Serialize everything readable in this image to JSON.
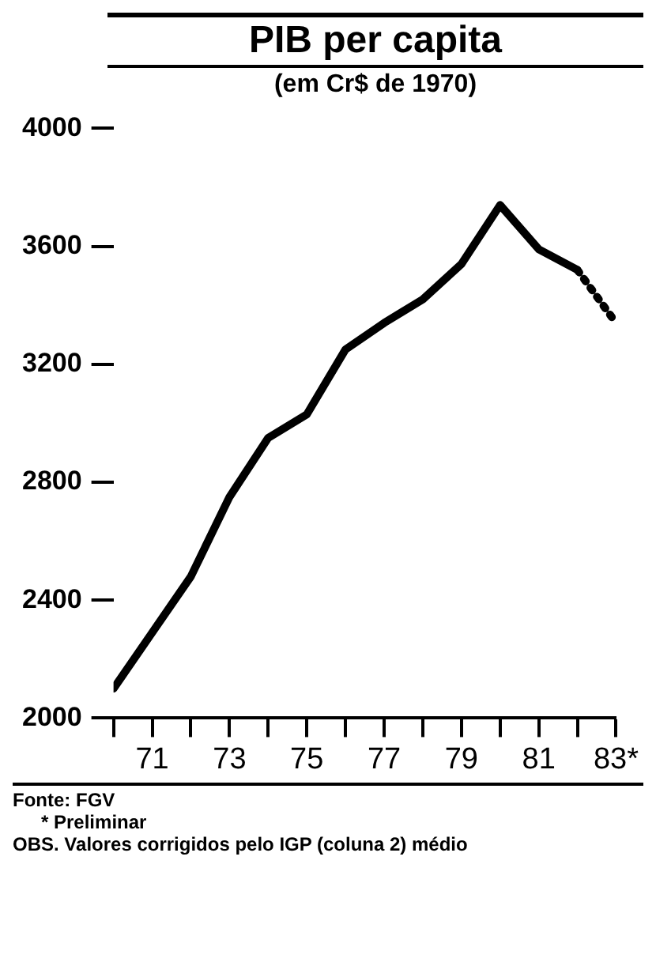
{
  "chart_data": {
    "type": "line",
    "title": "PIB per capita",
    "subtitle": "(em Cr$ de 1970)",
    "series": [
      {
        "color": "#000000",
        "line_style": "solid",
        "x": [
          70,
          71,
          72,
          73,
          74,
          75,
          76,
          77,
          78,
          79,
          80,
          81,
          82
        ],
        "values": [
          2100,
          2290,
          2480,
          2750,
          2950,
          3030,
          3250,
          3340,
          3420,
          3540,
          3740,
          3590,
          3520
        ]
      },
      {
        "color": "#000000",
        "line_style": "dotted",
        "x": [
          82,
          83
        ],
        "values": [
          3520,
          3340
        ]
      }
    ],
    "xlim": [
      70,
      83
    ],
    "xticks": [
      {
        "value": 70,
        "label": null
      },
      71,
      {
        "value": 72,
        "label": null
      },
      73,
      {
        "value": 74,
        "label": null
      },
      75,
      {
        "value": 76,
        "label": null
      },
      77,
      {
        "value": 78,
        "label": null
      },
      79,
      {
        "value": 80,
        "label": null
      },
      81,
      {
        "value": 82,
        "label": null
      },
      {
        "value": 83,
        "label": "83*"
      }
    ],
    "ylim": [
      2000,
      4000
    ],
    "yticks": [
      2000,
      2400,
      2800,
      3200,
      3600,
      4000
    ],
    "marker": "none",
    "grid": false,
    "legend": false,
    "annotations": [
      "Fonte: FGV",
      "* Preliminar",
      "OBS. Valores corrigidos pelo IGP (coluna 2) médio"
    ]
  }
}
